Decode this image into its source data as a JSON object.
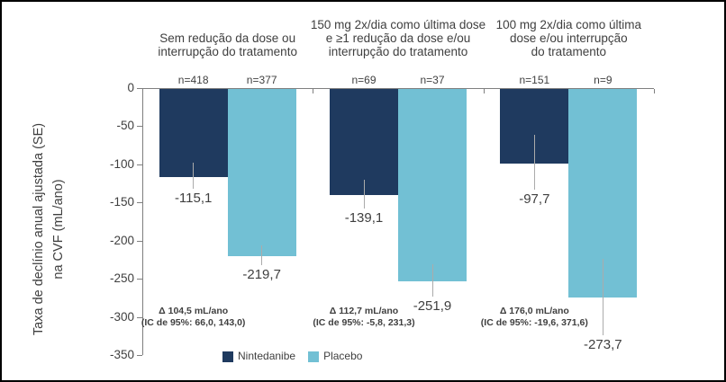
{
  "figure": {
    "background": "#ffffff",
    "border_color": "#000000",
    "text_color": "#3f3f3f",
    "axis_color": "#7f7f7f",
    "error_bar_color": "#ababab"
  },
  "y_axis": {
    "title_line1": "Taxa de declínio anual ajustada (SE)",
    "title_line2": "na CVF (mL/ano)",
    "ticks": [
      {
        "label": "0",
        "value": 0
      },
      {
        "label": "-50",
        "value": -50
      },
      {
        "label": "-100",
        "value": -100
      },
      {
        "label": "-150",
        "value": -150
      },
      {
        "label": "-200",
        "value": -200
      },
      {
        "label": "-250",
        "value": -250
      },
      {
        "label": "-300",
        "value": -300
      },
      {
        "label": "-350",
        "value": -350
      }
    ]
  },
  "legend": {
    "items": [
      {
        "label": "Nintedanibe",
        "color": "#1F3A5F"
      },
      {
        "label": "Placebo",
        "color": "#72C0D4"
      }
    ]
  },
  "chart_data": {
    "type": "bar",
    "ylabel": "Taxa de declínio anual ajustada (SE) na CVF (mL/ano)",
    "ylim": [
      -350,
      0
    ],
    "grid": false,
    "legend_position": "bottom",
    "series_names": [
      "Nintedanibe",
      "Placebo"
    ],
    "groups": [
      {
        "header_lines": [
          "Sem redução da dose ou",
          "interrupção do tratamento"
        ],
        "bars": [
          {
            "series": "Nintedanibe",
            "n_label": "n=418",
            "value": -115.1,
            "value_label": "-115,1",
            "se": 17
          },
          {
            "series": "Placebo",
            "n_label": "n=377",
            "value": -219.7,
            "value_label": "-219,7",
            "se": 13
          }
        ],
        "delta_line1": "Δ 104,5 mL/ano",
        "delta_line2": "(IC de 95%: 66,0, 143,0)"
      },
      {
        "header_lines": [
          "150 mg 2x/dia como última dose",
          "e ≥1 redução da dose e/ou",
          "interrupção do tratamento"
        ],
        "bars": [
          {
            "series": "Nintedanibe",
            "n_label": "n=69",
            "value": -139.1,
            "value_label": "-139,1",
            "se": 19
          },
          {
            "series": "Placebo",
            "n_label": "n=37",
            "value": -251.9,
            "value_label": "-251,9",
            "se": 21
          }
        ],
        "delta_line1": "Δ 112,7 mL/ano",
        "delta_line2": "(IC de 95%: -5,8, 231,3)"
      },
      {
        "header_lines": [
          "100 mg 2x/dia como última",
          "dose e/ou interrupção",
          "do tratamento"
        ],
        "bars": [
          {
            "series": "Nintedanibe",
            "n_label": "n=151",
            "value": -97.7,
            "value_label": "-97,7",
            "se": 36
          },
          {
            "series": "Placebo",
            "n_label": "n=9",
            "value": -273.7,
            "value_label": "-273,7",
            "se": 50
          }
        ],
        "delta_line1": "Δ 176,0 mL/ano",
        "delta_line2": "(IC de 95%: -19,6, 371,6)"
      }
    ]
  }
}
